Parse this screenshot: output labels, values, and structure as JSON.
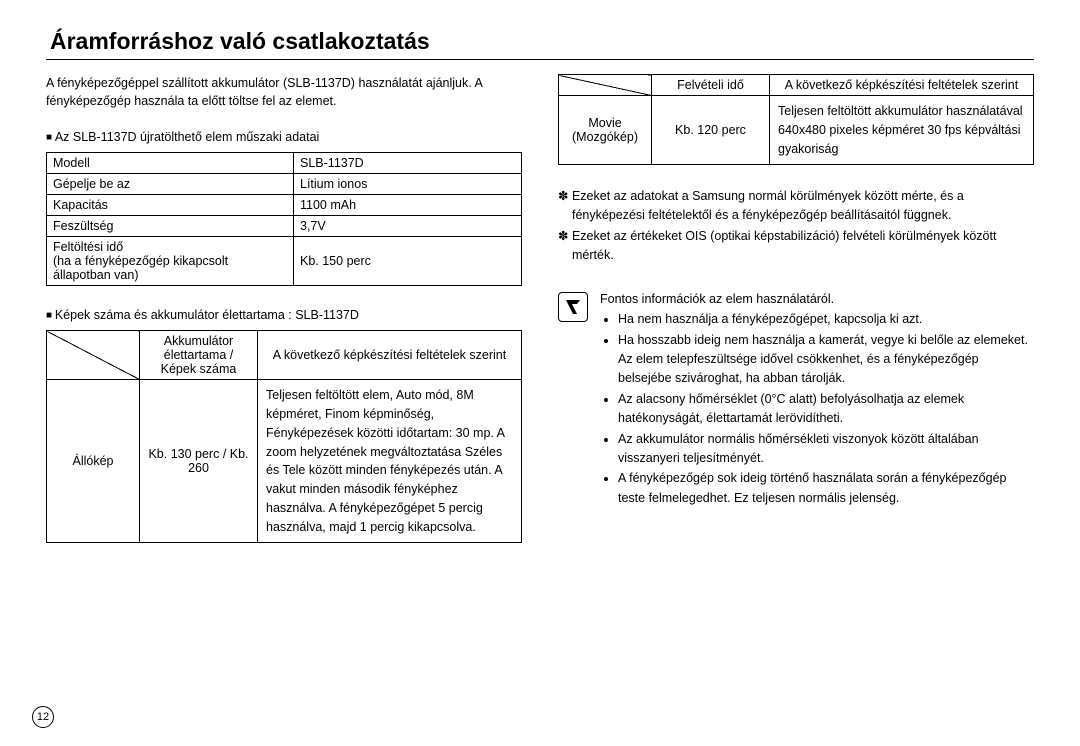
{
  "title": "Áramforráshoz való csatlakoztatás",
  "intro": "A fényképezőgéppel szállított akkumulátor (SLB-1137D) használatát ajánljuk. A fényképezőgép használa  ta előtt töltse fel az elemet.",
  "sub1": "Az SLB-1137D újratölthető elem műszaki adatai",
  "table1": {
    "rows": [
      [
        "Modell",
        "SLB-1137D"
      ],
      [
        "Gépelje be az",
        "Lítium ionos"
      ],
      [
        "Kapacitás",
        "1100 mAh"
      ],
      [
        "Feszültség",
        "3,7V"
      ],
      [
        "Feltöltési idő\n(ha a fényképezőgép kikapcsolt állapotban van)",
        "Kb. 150 perc"
      ]
    ]
  },
  "sub2": "Képek száma és akkumulátor élettartama : SLB-1137D",
  "table2": {
    "h1": "Akkumulátor élettartama / Képek száma",
    "h2": "A következő képkészítési feltételek szerint",
    "row_label": "Állókép",
    "row_val": "Kb. 130 perc / Kb. 260",
    "cond": "Teljesen feltöltött elem, Auto mód,\n8M képméret, Finom képminőség,\nFényképezések közötti időtartam: 30 mp.\nA zoom helyzetének megváltoztatása Széles és Tele között minden fényképezés után.\nA vakut minden második fényképhez használva.\nA fényképezőgépet 5 percig használva, majd 1 percig kikapcsolva."
  },
  "table3": {
    "h1": "Felvételi idő",
    "h2": "A következő képkészítési feltételek szerint",
    "row_label": "Movie (Mozgókép)",
    "row_val": "Kb. 120 perc",
    "cond": "Teljesen feltöltött akkumulátor használatával\n640x480 pixeles képméret\n30 fps képváltási gyakoriság"
  },
  "notes": [
    "Ezeket az adatokat a Samsung normál körülmények között mérte, és a fényképezési feltételektől és a fényképezőgép beállításaitól függnek.",
    "Ezeket az értékeket OIS (optikai képstabilizáció) felvételi körülmények között mérték."
  ],
  "info_header": "Fontos információk az elem használatáról.",
  "info_bullets": [
    "Ha nem használja a fényképezőgépet, kapcsolja ki azt.",
    "Ha hosszabb ideig nem használja a kamerát, vegye ki belőle az elemeket. Az elem telepfeszültsége idővel csökkenhet, és a fényképezőgép belsejébe szivároghat, ha abban tárolják.",
    "Az alacsony hőmérséklet (0°C alatt) befolyásolhatja az elemek hatékonyságát, élettartamát lerövidítheti.",
    "Az akkumulátor normális hőmérsékleti viszonyok között általában visszanyeri teljesítményét.",
    "A fényképezőgép sok ideig történő használata során a fényképezőgép teste felmelegedhet. Ez teljesen normális jelenség."
  ],
  "page": "12"
}
